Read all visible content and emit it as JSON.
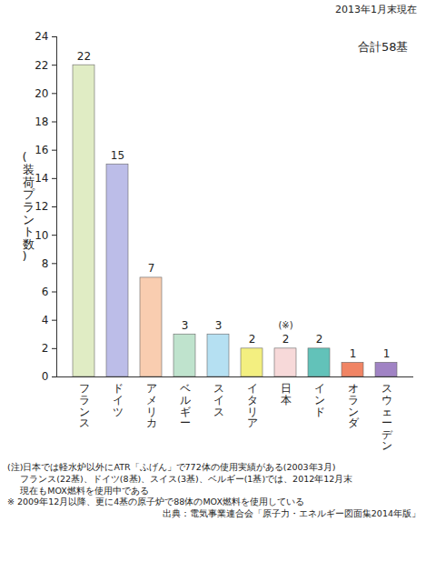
{
  "chart_data": {
    "type": "bar",
    "subtitle": "2013年1月末現在",
    "y_label": "(装荷プラント数)",
    "total_label": "合計58基",
    "categories": [
      "フランス",
      "ドイツ",
      "アメリカ",
      "ベルギー",
      "スイス",
      "イタリア",
      "日本",
      "インド",
      "オランダ",
      "スウェーデン"
    ],
    "values": [
      22,
      15,
      7,
      3,
      3,
      2,
      2,
      2,
      1,
      1
    ],
    "colors": [
      "#e0ecc4",
      "#bcbde8",
      "#f9cdb0",
      "#bfe3cd",
      "#b5e0f2",
      "#f3ef80",
      "#f7d9d9",
      "#62c2b9",
      "#f08464",
      "#a083c4"
    ],
    "ylim": [
      0,
      24
    ],
    "yticks": [
      0,
      2,
      4,
      6,
      8,
      10,
      12,
      14,
      16,
      18,
      20,
      22,
      24
    ],
    "grid": false,
    "data_labels": true,
    "annotations": [
      {
        "category": "日本",
        "text": "(※)"
      }
    ],
    "notes": [
      "(注)日本では軽水炉以外にATR「ふげん」で772体の使用実績がある(2003年3月)",
      "フランス(22基)、ドイツ(8基)、スイス(3基)、ベルギー(1基)では、2012年12月末",
      "現在もMOX燃料を使用中である",
      "※ 2009年12月以降、更に4基の原子炉で88体のMOX燃料を使用している"
    ],
    "source": "出典：電気事業連合会「原子力・エネルギー図面集2014年版」"
  }
}
